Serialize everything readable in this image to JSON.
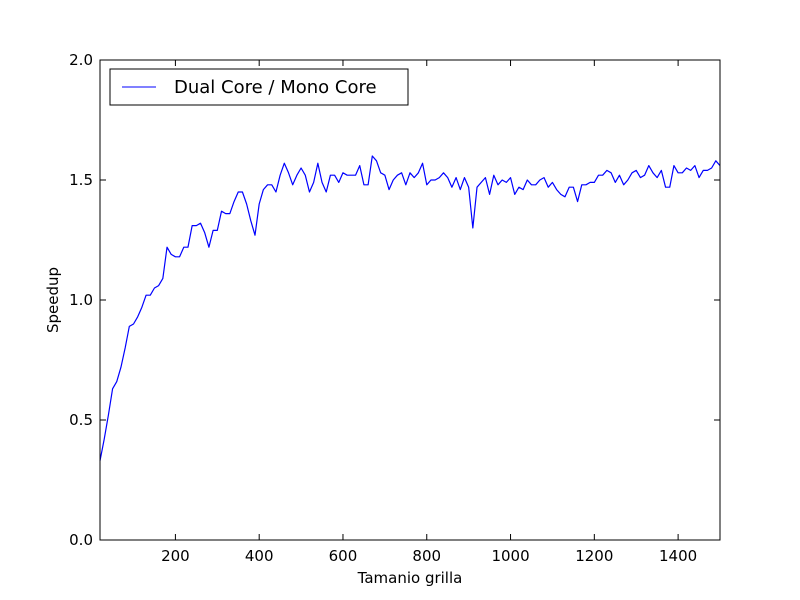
{
  "chart_data": {
    "type": "line",
    "title": "",
    "xlabel": "Tamanio grilla",
    "ylabel": "Speedup",
    "xlim": [
      20,
      1500
    ],
    "ylim": [
      0.0,
      2.0
    ],
    "x_ticks": [
      200,
      400,
      600,
      800,
      1000,
      1200,
      1400
    ],
    "x_tick_labels": [
      "200",
      "400",
      "600",
      "800",
      "1000",
      "1200",
      "1400"
    ],
    "y_ticks": [
      0.0,
      0.5,
      1.0,
      1.5,
      2.0
    ],
    "y_tick_labels": [
      "0.0",
      "0.5",
      "1.0",
      "1.5",
      "2.0"
    ],
    "grid": false,
    "legend": {
      "position": "top-left",
      "entries": [
        "Dual Core / Mono Core"
      ]
    },
    "series": [
      {
        "name": "Dual Core / Mono Core",
        "color": "#0000ff",
        "x": [
          20,
          30,
          40,
          50,
          60,
          70,
          80,
          90,
          100,
          110,
          120,
          130,
          140,
          150,
          160,
          170,
          180,
          190,
          200,
          210,
          220,
          230,
          240,
          250,
          260,
          270,
          280,
          290,
          300,
          310,
          320,
          330,
          340,
          350,
          360,
          370,
          380,
          390,
          400,
          410,
          420,
          430,
          440,
          450,
          460,
          470,
          480,
          490,
          500,
          510,
          520,
          530,
          540,
          550,
          560,
          570,
          580,
          590,
          600,
          610,
          620,
          630,
          640,
          650,
          660,
          670,
          680,
          690,
          700,
          710,
          720,
          730,
          740,
          750,
          760,
          770,
          780,
          790,
          800,
          810,
          820,
          830,
          840,
          850,
          860,
          870,
          880,
          890,
          900,
          910,
          920,
          930,
          940,
          950,
          960,
          970,
          980,
          990,
          1000,
          1010,
          1020,
          1030,
          1040,
          1050,
          1060,
          1070,
          1080,
          1090,
          1100,
          1110,
          1120,
          1130,
          1140,
          1150,
          1160,
          1170,
          1180,
          1190,
          1200,
          1210,
          1220,
          1230,
          1240,
          1250,
          1260,
          1270,
          1280,
          1290,
          1300,
          1310,
          1320,
          1330,
          1340,
          1350,
          1360,
          1370,
          1380,
          1390,
          1400,
          1410,
          1420,
          1430,
          1440,
          1450,
          1460,
          1470,
          1480,
          1490,
          1500
        ],
        "y": [
          0.33,
          0.42,
          0.52,
          0.63,
          0.66,
          0.72,
          0.8,
          0.89,
          0.9,
          0.93,
          0.97,
          1.02,
          1.02,
          1.05,
          1.06,
          1.09,
          1.22,
          1.19,
          1.18,
          1.18,
          1.22,
          1.22,
          1.31,
          1.31,
          1.32,
          1.28,
          1.22,
          1.29,
          1.29,
          1.37,
          1.36,
          1.36,
          1.41,
          1.45,
          1.45,
          1.4,
          1.33,
          1.27,
          1.4,
          1.46,
          1.48,
          1.48,
          1.45,
          1.52,
          1.57,
          1.53,
          1.48,
          1.52,
          1.55,
          1.52,
          1.45,
          1.49,
          1.57,
          1.49,
          1.45,
          1.52,
          1.52,
          1.49,
          1.53,
          1.52,
          1.52,
          1.52,
          1.56,
          1.48,
          1.48,
          1.6,
          1.58,
          1.53,
          1.52,
          1.46,
          1.5,
          1.52,
          1.53,
          1.48,
          1.53,
          1.51,
          1.53,
          1.57,
          1.48,
          1.5,
          1.5,
          1.51,
          1.53,
          1.51,
          1.47,
          1.51,
          1.46,
          1.51,
          1.47,
          1.3,
          1.47,
          1.49,
          1.51,
          1.44,
          1.52,
          1.48,
          1.5,
          1.49,
          1.51,
          1.44,
          1.47,
          1.46,
          1.5,
          1.48,
          1.48,
          1.5,
          1.51,
          1.47,
          1.49,
          1.46,
          1.44,
          1.43,
          1.47,
          1.47,
          1.41,
          1.48,
          1.48,
          1.49,
          1.49,
          1.52,
          1.52,
          1.54,
          1.53,
          1.49,
          1.52,
          1.48,
          1.5,
          1.53,
          1.54,
          1.51,
          1.52,
          1.56,
          1.53,
          1.51,
          1.54,
          1.47,
          1.47,
          1.56,
          1.53,
          1.53,
          1.55,
          1.54,
          1.56,
          1.51,
          1.54,
          1.54,
          1.55,
          1.58,
          1.56
        ]
      }
    ]
  }
}
